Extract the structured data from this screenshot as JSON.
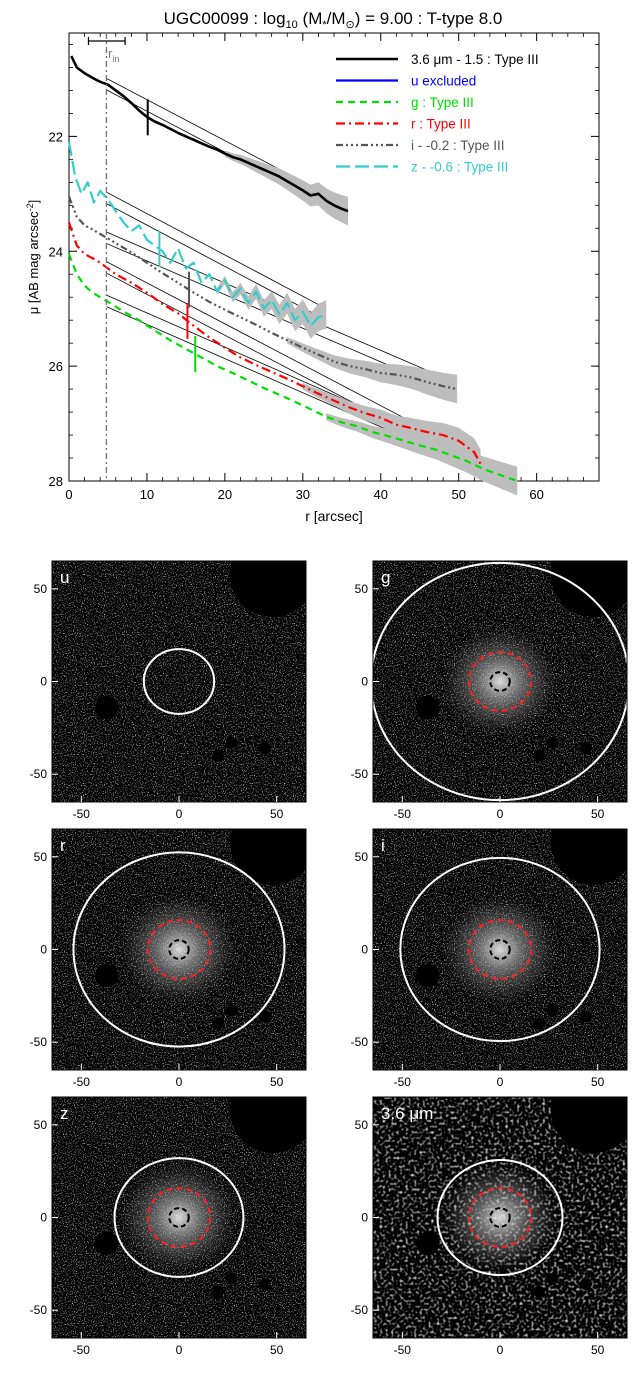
{
  "chart_data": [
    {
      "type": "line",
      "title_parts": {
        "lead": "UGC00099 : log",
        "sub10": "10",
        "open": " (M",
        "star": "*",
        "slash": "/M",
        "sun": "⊙",
        "rest": ") = 9.00 : T-type 8.0"
      },
      "xlabel": "r [arcsec]",
      "ylabel_parts": {
        "main": "μ [AB mag arcsec",
        "sup": "-2",
        "close": "]"
      },
      "xlim": [
        0,
        68
      ],
      "ylim": [
        28,
        20.2
      ],
      "y_inverted": true,
      "xticks": [
        0,
        10,
        20,
        30,
        40,
        50,
        60
      ],
      "yticks": [
        22,
        24,
        26,
        28
      ],
      "grid": false,
      "legend_position": "top-right",
      "r_in": {
        "value": 4.8,
        "label_main": "r",
        "label_sub": "in",
        "error_range": [
          2.5,
          7.2
        ]
      },
      "series": [
        {
          "name": "3.6 μm - 1.5 : Type III",
          "color": "#000000",
          "dash": "",
          "width": 2.6,
          "x": [
            0.3,
            1,
            2,
            3,
            4,
            5,
            6,
            7,
            8,
            9,
            10,
            11,
            12,
            13,
            14,
            15,
            16,
            17,
            18,
            19,
            20,
            21,
            22,
            23,
            24,
            25,
            26,
            27,
            28,
            29,
            30,
            31,
            32,
            33,
            34,
            35,
            35.8
          ],
          "y": [
            20.6,
            20.8,
            20.9,
            20.98,
            21.05,
            21.1,
            21.2,
            21.3,
            21.42,
            21.55,
            21.66,
            21.74,
            21.8,
            21.87,
            21.94,
            22.0,
            22.06,
            22.12,
            22.18,
            22.23,
            22.3,
            22.36,
            22.4,
            22.46,
            22.52,
            22.58,
            22.64,
            22.7,
            22.78,
            22.86,
            22.94,
            23.03,
            23.0,
            23.12,
            23.2,
            23.26,
            23.3
          ],
          "break_x": 10.1
        },
        {
          "name": "u excluded",
          "color": "#0000ff",
          "dash": "",
          "width": 2.2,
          "x": [],
          "y": []
        },
        {
          "name": "g : Type III",
          "color": "#00e000",
          "dash": "7,5",
          "width": 2.2,
          "x": [
            0,
            1,
            2,
            3,
            4,
            5,
            7,
            9,
            11,
            13,
            15,
            17,
            19,
            21,
            23,
            25,
            27,
            29,
            31,
            33,
            35,
            37,
            39,
            41,
            43,
            45,
            47,
            49,
            51,
            53,
            55,
            57.5
          ],
          "y": [
            24.05,
            24.4,
            24.6,
            24.72,
            24.8,
            24.88,
            25.05,
            25.2,
            25.38,
            25.55,
            25.7,
            25.85,
            26.0,
            26.12,
            26.25,
            26.38,
            26.5,
            26.62,
            26.75,
            26.88,
            26.98,
            27.05,
            27.15,
            27.22,
            27.3,
            27.38,
            27.45,
            27.55,
            27.65,
            27.78,
            27.88,
            28.0
          ],
          "break_x": 16.2
        },
        {
          "name": "r : Type III",
          "color": "#ff0000",
          "dash": "9,4,2,4",
          "width": 2.2,
          "x": [
            0,
            1,
            2,
            3,
            4,
            5,
            6,
            8,
            10,
            12,
            14,
            16,
            18,
            20,
            22,
            24,
            26,
            28,
            30,
            32,
            34,
            36,
            38,
            40,
            42,
            44,
            46,
            48,
            50,
            52,
            52.8
          ],
          "y": [
            23.5,
            23.9,
            24.05,
            24.12,
            24.2,
            24.3,
            24.4,
            24.55,
            24.72,
            24.92,
            25.08,
            25.3,
            25.5,
            25.68,
            25.85,
            25.98,
            26.1,
            26.22,
            26.35,
            26.48,
            26.6,
            26.72,
            26.82,
            26.9,
            27.02,
            27.08,
            27.15,
            27.2,
            27.3,
            27.5,
            27.7
          ],
          "break_x": 15.2
        },
        {
          "name": "i - -0.2 : Type III",
          "color": "#555555",
          "dash": "7,3,2,3,2,3,2,3",
          "width": 2.2,
          "x": [
            0,
            1,
            2,
            3,
            4,
            5,
            6,
            8,
            10,
            12,
            14,
            16,
            18,
            20,
            22,
            24,
            26,
            28,
            30,
            32,
            34,
            36,
            38,
            40,
            42,
            44,
            46,
            48,
            49.8
          ],
          "y": [
            23.05,
            23.4,
            23.55,
            23.62,
            23.7,
            23.78,
            23.86,
            24.02,
            24.2,
            24.38,
            24.55,
            24.72,
            24.88,
            25.02,
            25.15,
            25.28,
            25.42,
            25.55,
            25.68,
            25.8,
            25.92,
            26.0,
            26.05,
            26.12,
            26.15,
            26.2,
            26.28,
            26.35,
            26.4
          ],
          "break_x": 15.4
        },
        {
          "name": "z - -0.6 : Type III",
          "color": "#33cccc",
          "dash": "14,5",
          "width": 2.2,
          "x": [
            0,
            0.8,
            1.6,
            2.4,
            3.2,
            4,
            5,
            6,
            7,
            8,
            9,
            10,
            11,
            12,
            13,
            14,
            15,
            16,
            17,
            18,
            19,
            20,
            21,
            22,
            23,
            24,
            25,
            26,
            27,
            28,
            29,
            30,
            31,
            32,
            33
          ],
          "y": [
            22.1,
            22.7,
            23.0,
            22.8,
            23.15,
            22.95,
            23.1,
            23.3,
            23.5,
            23.65,
            23.55,
            23.8,
            23.9,
            24.0,
            24.2,
            23.95,
            24.3,
            24.2,
            24.55,
            24.4,
            24.7,
            24.5,
            24.8,
            24.65,
            24.9,
            24.7,
            25.0,
            24.85,
            25.1,
            24.9,
            25.2,
            25.05,
            25.3,
            25.15,
            25.1
          ],
          "break_x": 11.6
        }
      ]
    },
    {
      "type": "heatmap",
      "panels": [
        {
          "label": "u",
          "xlim": [
            -65,
            65
          ],
          "ylim": [
            -65,
            65
          ],
          "xticks": [
            -50,
            0,
            50
          ],
          "yticks": [
            50,
            0,
            -50
          ],
          "outer_ellipse_radius": 18,
          "has_inner_ellipses": false
        },
        {
          "label": "g",
          "xlim": [
            -65,
            65
          ],
          "ylim": [
            -65,
            65
          ],
          "xticks": [
            -50,
            0,
            50
          ],
          "yticks": [
            50,
            0,
            -50
          ],
          "outer_ellipse_radius": 66,
          "has_inner_ellipses": true
        },
        {
          "label": "r",
          "xlim": [
            -65,
            65
          ],
          "ylim": [
            -65,
            65
          ],
          "xticks": [
            -50,
            0,
            50
          ],
          "yticks": [
            50,
            0,
            -50
          ],
          "outer_ellipse_radius": 54,
          "has_inner_ellipses": true
        },
        {
          "label": "i",
          "xlim": [
            -65,
            65
          ],
          "ylim": [
            -65,
            65
          ],
          "xticks": [
            -50,
            0,
            50
          ],
          "yticks": [
            50,
            0,
            -50
          ],
          "outer_ellipse_radius": 51,
          "has_inner_ellipses": true
        },
        {
          "label": "z",
          "xlim": [
            -65,
            65
          ],
          "ylim": [
            -65,
            65
          ],
          "xticks": [
            -50,
            0,
            50
          ],
          "yticks": [
            50,
            0,
            -50
          ],
          "outer_ellipse_radius": 33,
          "has_inner_ellipses": true
        },
        {
          "label_main": "3.6 ",
          "label_unit": "μm",
          "xlim": [
            -65,
            65
          ],
          "ylim": [
            -65,
            65
          ],
          "xticks": [
            -50,
            0,
            50
          ],
          "yticks": [
            50,
            0,
            -50
          ],
          "outer_ellipse_radius": 32,
          "has_inner_ellipses": true
        }
      ]
    }
  ]
}
